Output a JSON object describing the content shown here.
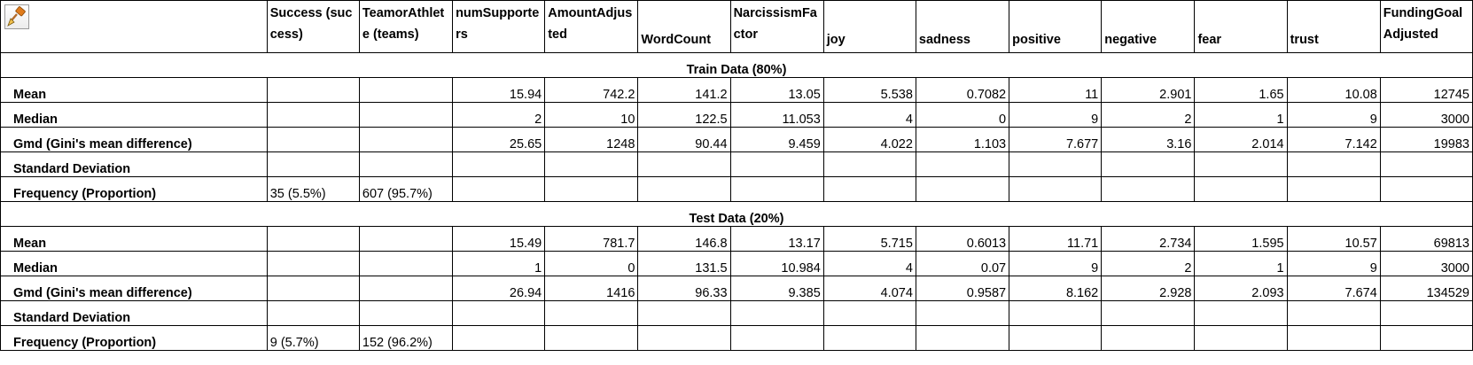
{
  "header": {
    "icon": "format-painter-icon",
    "columns": [
      "Success (success)",
      "TeamorAthlete (teams)",
      "numSupporters",
      "AmountAdjusted",
      "WordCount",
      "NarcissismFactor",
      "joy",
      "sadness",
      "positive",
      "negative",
      "fear",
      "trust",
      "FundingGoalAdjusted"
    ]
  },
  "sections": [
    {
      "title": "Train Data (80%)",
      "rows": [
        {
          "label": "Mean",
          "cells": [
            "",
            "",
            "15.94",
            "742.2",
            "141.2",
            "13.05",
            "5.538",
            "0.7082",
            "11",
            "2.901",
            "1.65",
            "10.08",
            "12745"
          ]
        },
        {
          "label": "Median",
          "cells": [
            "",
            "",
            "2",
            "10",
            "122.5",
            "11.053",
            "4",
            "0",
            "9",
            "2",
            "1",
            "9",
            "3000"
          ]
        },
        {
          "label": "Gmd (Gini's mean difference)",
          "cells": [
            "",
            "",
            "25.65",
            "1248",
            "90.44",
            "9.459",
            "4.022",
            "1.103",
            "7.677",
            "3.16",
            "2.014",
            "7.142",
            "19983"
          ]
        },
        {
          "label": "Standard Deviation",
          "cells": [
            "",
            "",
            "",
            "",
            "",
            "",
            "",
            "",
            "",
            "",
            "",
            "",
            ""
          ]
        },
        {
          "label": "Frequency (Proportion)",
          "cells": [
            "35 (5.5%)",
            "607 (95.7%)",
            "",
            "",
            "",
            "",
            "",
            "",
            "",
            "",
            "",
            "",
            ""
          ]
        }
      ]
    },
    {
      "title": "Test Data (20%)",
      "rows": [
        {
          "label": "Mean",
          "cells": [
            "",
            "",
            "15.49",
            "781.7",
            "146.8",
            "13.17",
            "5.715",
            "0.6013",
            "11.71",
            "2.734",
            "1.595",
            "10.57",
            "69813"
          ]
        },
        {
          "label": "Median",
          "cells": [
            "",
            "",
            "1",
            "0",
            "131.5",
            "10.984",
            "4",
            "0.07",
            "9",
            "2",
            "1",
            "9",
            "3000"
          ]
        },
        {
          "label": "Gmd (Gini's mean difference)",
          "cells": [
            "",
            "",
            "26.94",
            "1416",
            "96.33",
            "9.385",
            "4.074",
            "0.9587",
            "8.162",
            "2.928",
            "2.093",
            "7.674",
            "134529"
          ]
        },
        {
          "label": "Standard Deviation",
          "cells": [
            "",
            "",
            "",
            "",
            "",
            "",
            "",
            "",
            "",
            "",
            "",
            "",
            ""
          ]
        },
        {
          "label": "Frequency (Proportion)",
          "cells": [
            "9 (5.7%)",
            "152 (96.2%)",
            "",
            "",
            "",
            "",
            "",
            "",
            "",
            "",
            "",
            "",
            ""
          ]
        }
      ]
    }
  ]
}
